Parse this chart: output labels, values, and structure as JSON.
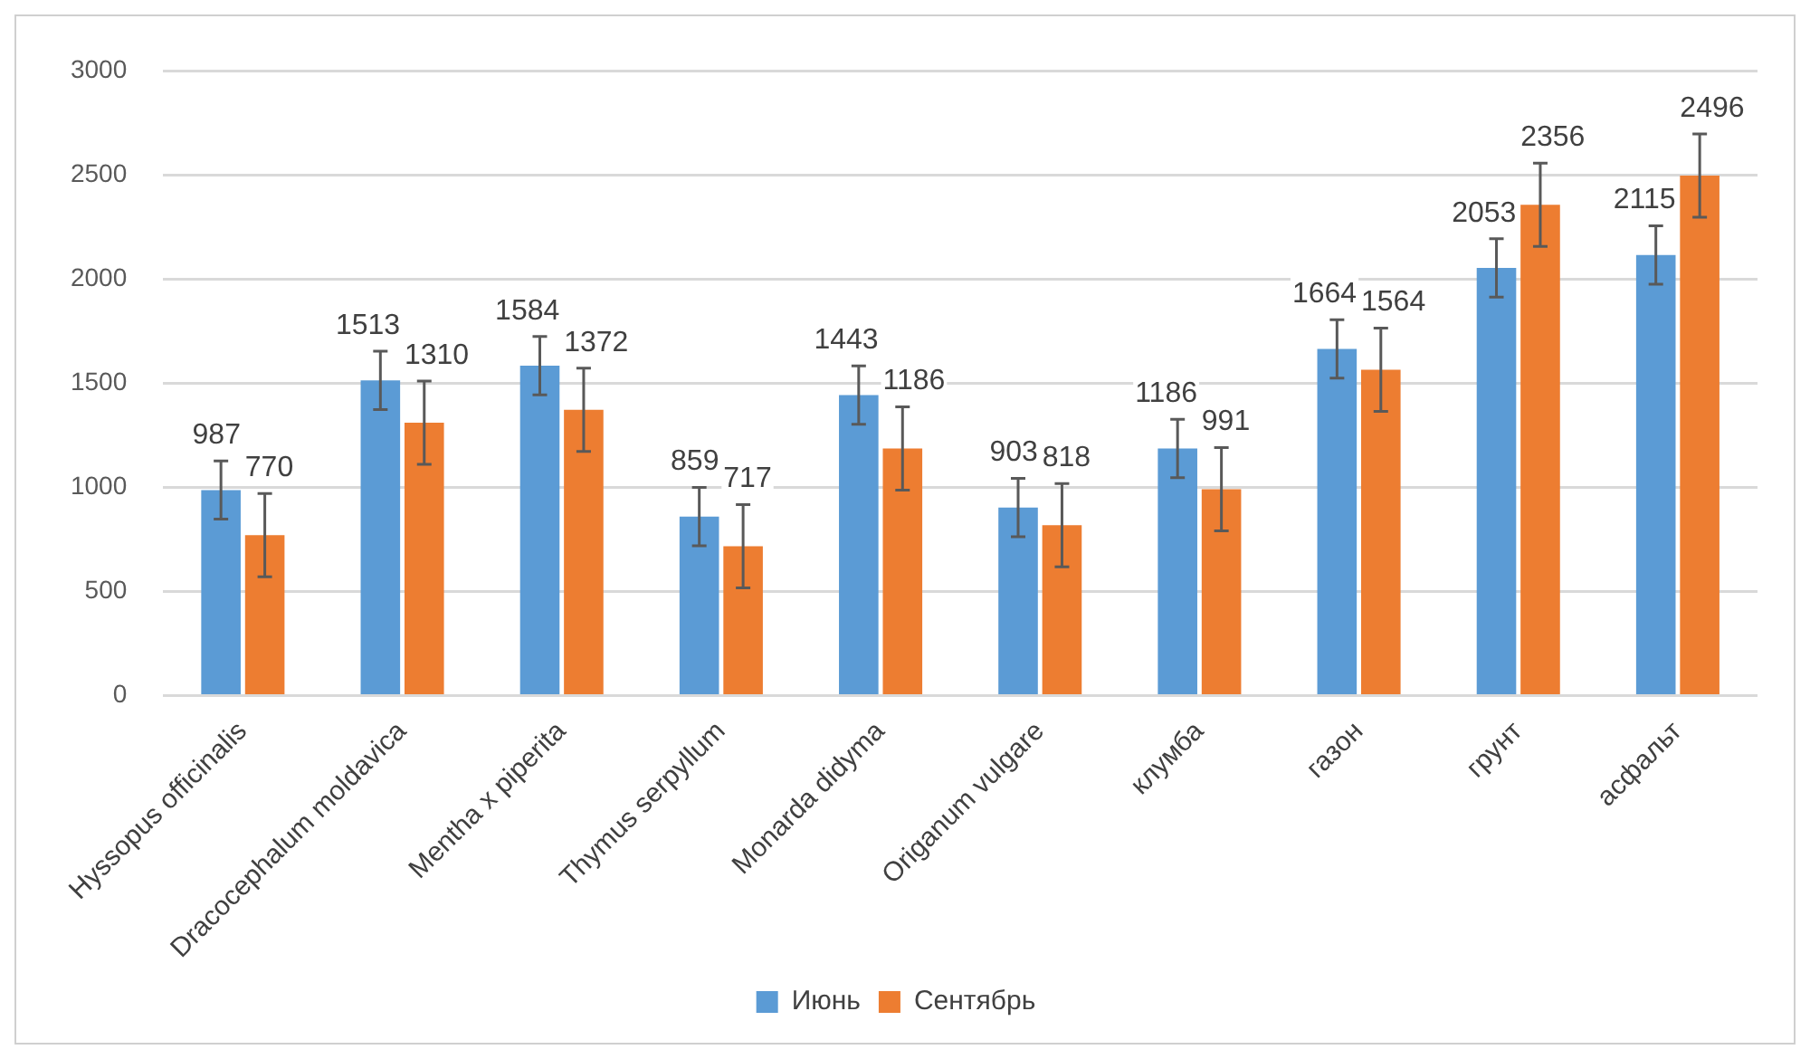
{
  "chart_data": {
    "type": "bar",
    "categories": [
      "Hyssopus officinalis",
      "Dracocephalum moldavica",
      "Mentha x piperita",
      "Thymus serpyllum",
      "Monarda didyma",
      "Origanum vulgare",
      "клумба",
      "газон",
      "грунт",
      "асфальт"
    ],
    "series": [
      {
        "name": "Июнь",
        "color": "#5b9bd5",
        "values": [
          987,
          1513,
          1584,
          859,
          1443,
          903,
          1186,
          1664,
          2053,
          2115
        ],
        "errors": [
          140,
          140,
          140,
          140,
          140,
          140,
          140,
          140,
          140,
          140
        ]
      },
      {
        "name": "Сентябрь",
        "color": "#ed7d31",
        "values": [
          770,
          1310,
          1372,
          717,
          1186,
          818,
          991,
          1564,
          2356,
          2496
        ],
        "errors": [
          200,
          200,
          200,
          200,
          200,
          200,
          200,
          200,
          200,
          200
        ]
      }
    ],
    "ylim": [
      0,
      3000
    ],
    "yticks": [
      0,
      500,
      1000,
      1500,
      2000,
      2500,
      3000
    ],
    "grid": "y",
    "legend": "bottom",
    "data_labels": true
  }
}
